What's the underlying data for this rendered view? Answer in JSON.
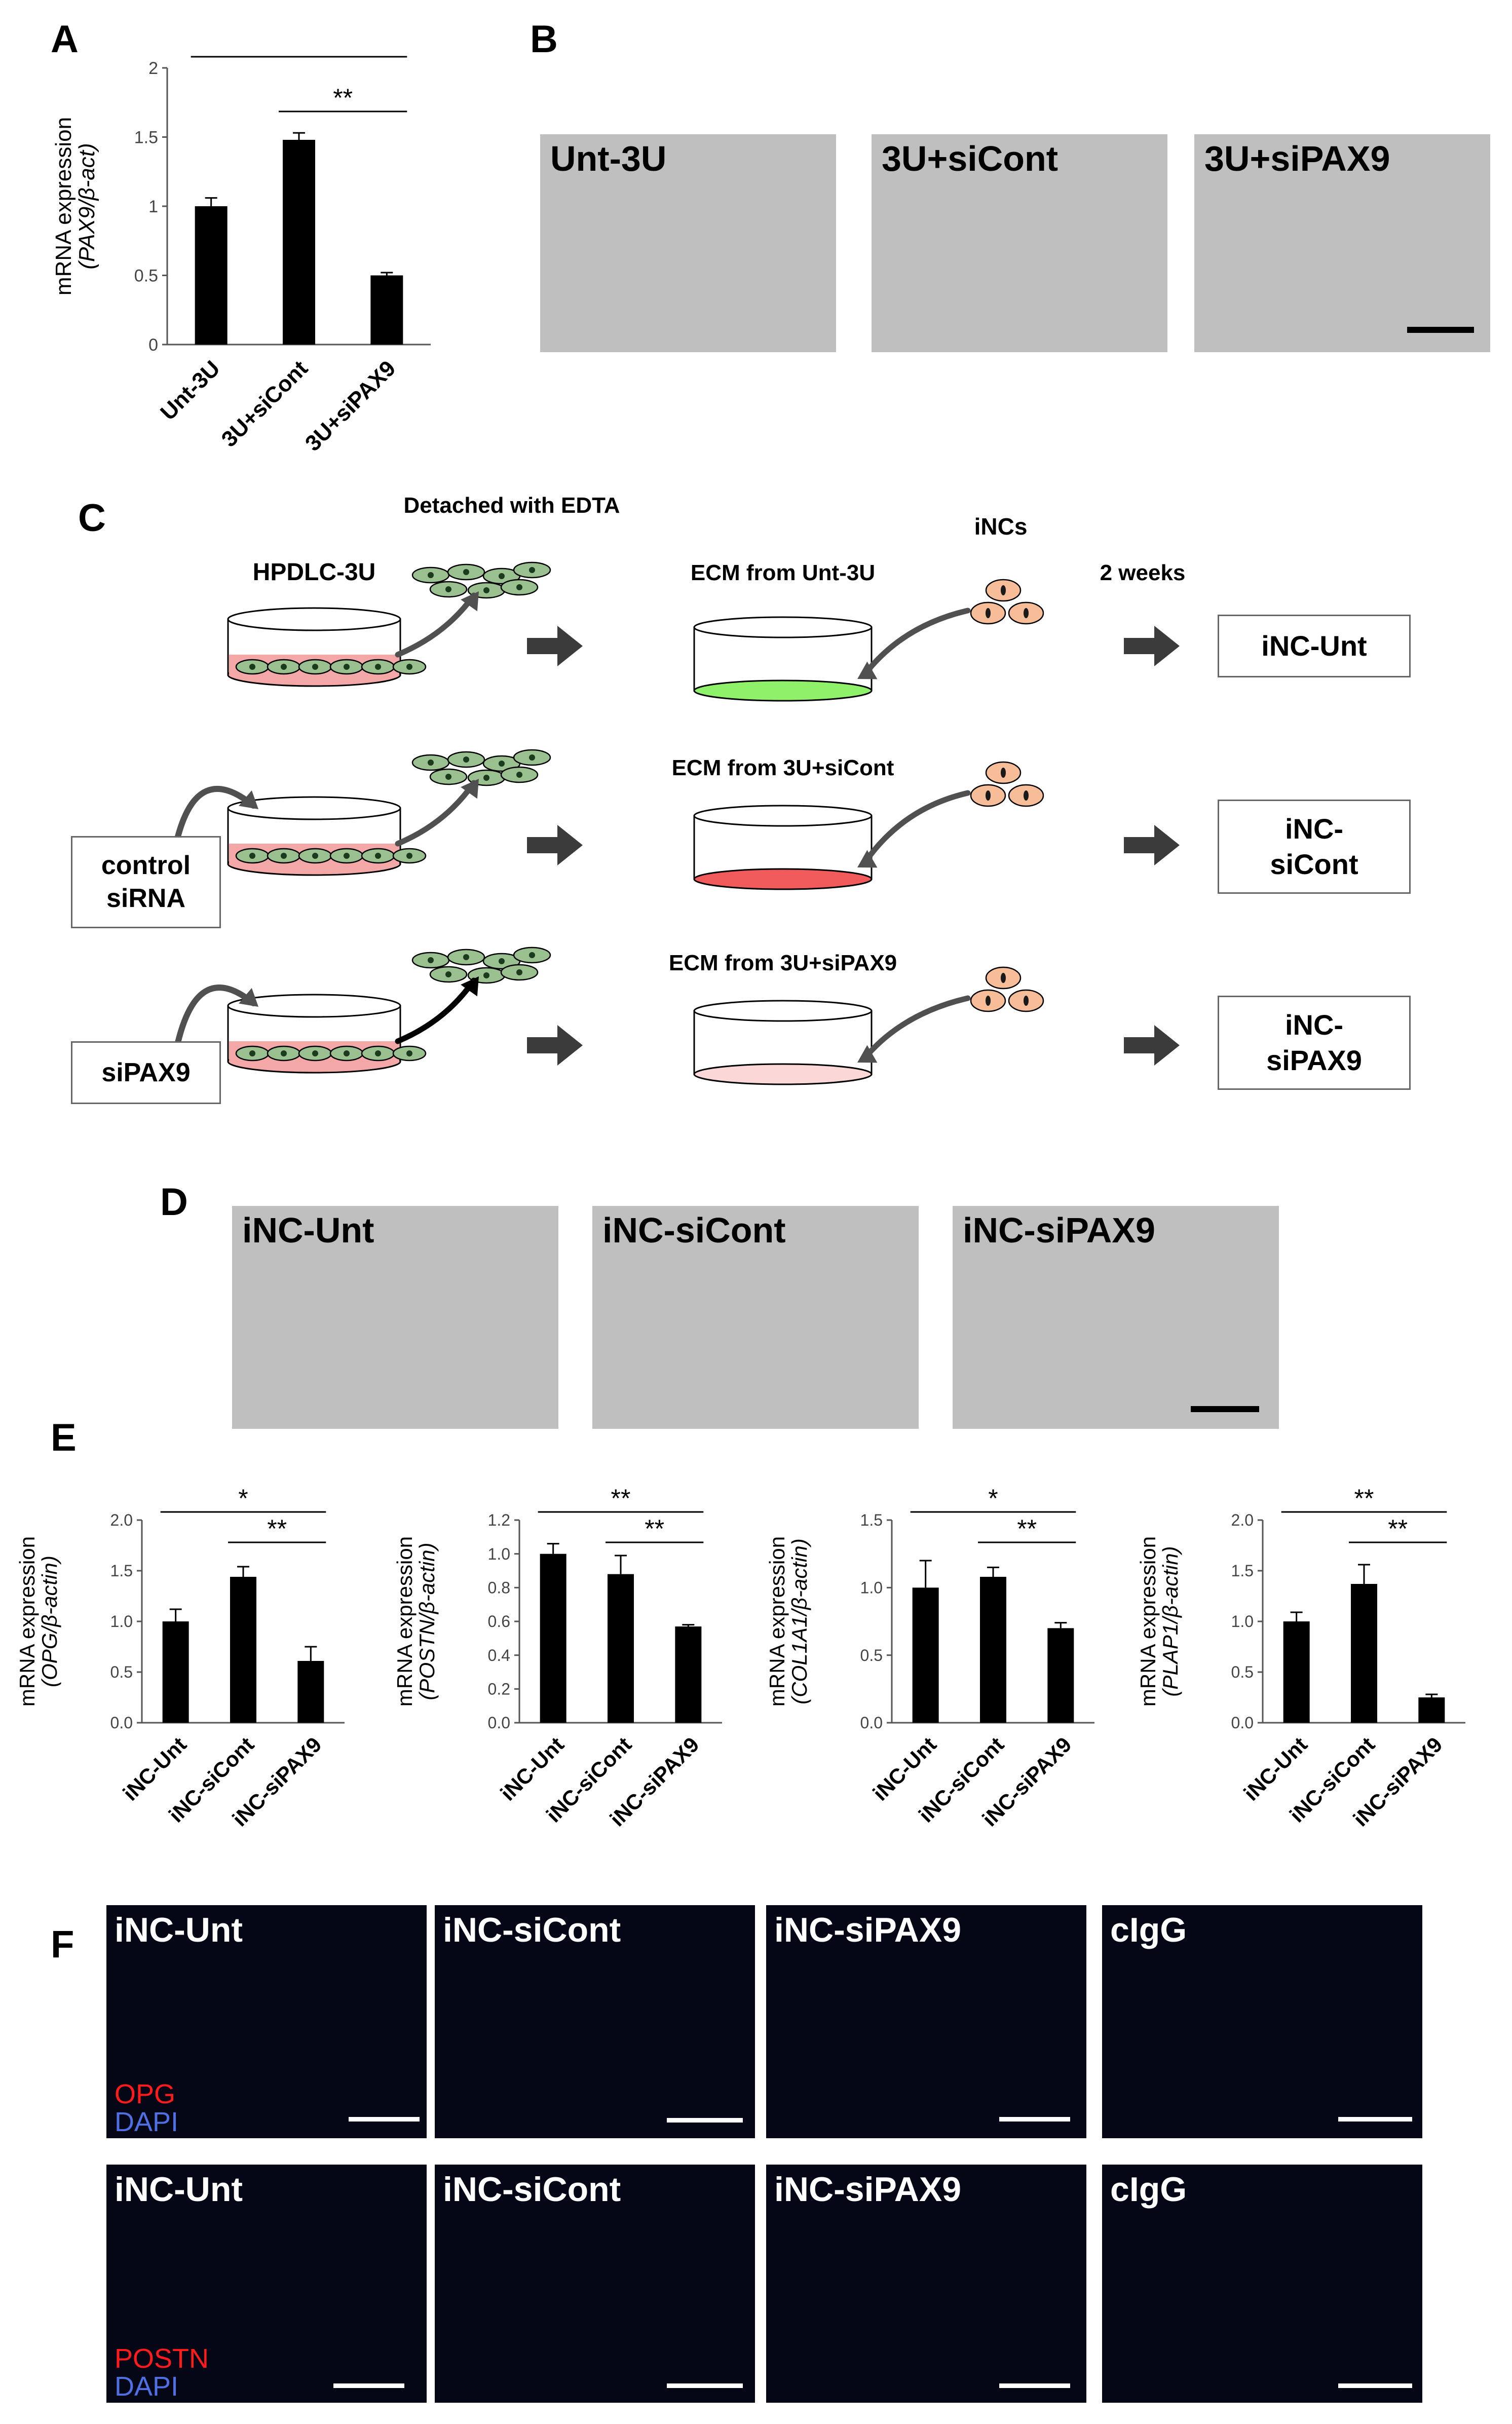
{
  "panels": {
    "A": "A",
    "B": "B",
    "C": "C",
    "D": "D",
    "E": "E",
    "F": "F"
  },
  "chart_data": [
    {
      "id": "A",
      "type": "bar",
      "categories": [
        "Unt-3U",
        "3U+siCont",
        "3U+siPAX9"
      ],
      "values": [
        1.0,
        1.48,
        0.5
      ],
      "errors": [
        0.06,
        0.05,
        0.02
      ],
      "ylabel_line1": "mRNA expression",
      "ylabel_line2": "(PAX9/β-act)",
      "ylim": [
        0,
        2
      ],
      "yticks": [
        "0",
        "0.5",
        "1",
        "1.5",
        "2"
      ],
      "significance": [
        {
          "from": 0,
          "to": 2,
          "label": "**"
        },
        {
          "from": 1,
          "to": 2,
          "label": "**"
        }
      ]
    },
    {
      "id": "E1",
      "type": "bar",
      "categories": [
        "iNC-Unt",
        "iNC-siCont",
        "iNC-siPAX9"
      ],
      "values": [
        1.0,
        1.44,
        0.61
      ],
      "errors": [
        0.12,
        0.1,
        0.14
      ],
      "ylabel_line1": "mRNA expression",
      "ylabel_line2": "(OPG/β-actin)",
      "ylim": [
        0,
        2.0
      ],
      "yticks": [
        "0.0",
        "0.5",
        "1.0",
        "1.5",
        "2.0"
      ],
      "significance": [
        {
          "from": 0,
          "to": 2,
          "label": "*"
        },
        {
          "from": 1,
          "to": 2,
          "label": "**"
        }
      ]
    },
    {
      "id": "E2",
      "type": "bar",
      "categories": [
        "iNC-Unt",
        "iNC-siCont",
        "iNC-siPAX9"
      ],
      "values": [
        1.0,
        0.88,
        0.57
      ],
      "errors": [
        0.06,
        0.11,
        0.01
      ],
      "ylabel_line1": "mRNA expression",
      "ylabel_line2": "(POSTN/β-actin)",
      "ylim": [
        0,
        1.2
      ],
      "yticks": [
        "0.0",
        "0.2",
        "0.4",
        "0.6",
        "0.8",
        "1.0",
        "1.2"
      ],
      "significance": [
        {
          "from": 0,
          "to": 2,
          "label": "**"
        },
        {
          "from": 1,
          "to": 2,
          "label": "**"
        }
      ]
    },
    {
      "id": "E3",
      "type": "bar",
      "categories": [
        "iNC-Unt",
        "iNC-siCont",
        "iNC-siPAX9"
      ],
      "values": [
        1.0,
        1.08,
        0.7
      ],
      "errors": [
        0.2,
        0.07,
        0.04
      ],
      "ylabel_line1": "mRNA expression",
      "ylabel_line2": "(COL1A1/β-actin)",
      "ylim": [
        0,
        1.5
      ],
      "yticks": [
        "0.0",
        "0.5",
        "1.0",
        "1.5"
      ],
      "significance": [
        {
          "from": 0,
          "to": 2,
          "label": "*"
        },
        {
          "from": 1,
          "to": 2,
          "label": "**"
        }
      ]
    },
    {
      "id": "E4",
      "type": "bar",
      "categories": [
        "iNC-Unt",
        "iNC-siCont",
        "iNC-siPAX9"
      ],
      "values": [
        1.0,
        1.37,
        0.25
      ],
      "errors": [
        0.09,
        0.19,
        0.03
      ],
      "ylabel_line1": "mRNA expression",
      "ylabel_line2": "(PLAP1/β-actin)",
      "ylim": [
        0,
        2.0
      ],
      "yticks": [
        "0.0",
        "0.5",
        "1.0",
        "1.5",
        "2.0"
      ],
      "significance": [
        {
          "from": 0,
          "to": 2,
          "label": "**"
        },
        {
          "from": 1,
          "to": 2,
          "label": "**"
        }
      ]
    }
  ],
  "panel_b": {
    "images": [
      "Unt-3U",
      "3U+siCont",
      "3U+siPAX9"
    ]
  },
  "panel_c": {
    "detached_label": "Detached with EDTA",
    "hpdlc_label": "HPDLC-3U",
    "incs_label": "iNCs",
    "weeks_label": "2 weeks",
    "control_sirna": "control\nsiRNA",
    "sipax9": "siPAX9",
    "rows": [
      {
        "ecm_label": "ECM from Unt-3U",
        "result": "iNC-Unt",
        "ecm_color": "#8ff06a"
      },
      {
        "ecm_label": "ECM from 3U+siCont",
        "result": "iNC-\nsiCont",
        "ecm_color": "#f05a5a"
      },
      {
        "ecm_label": "ECM from 3U+siPAX9",
        "result": "iNC-\nsiPAX9",
        "ecm_color": "#fbd7d7"
      }
    ],
    "dish_fill": "#f4a7a7",
    "cell_green": "#9bc08f",
    "inc_color": "#f7bd98"
  },
  "panel_d": {
    "images": [
      "iNC-Unt",
      "iNC-siCont",
      "iNC-siPAX9"
    ]
  },
  "panel_f": {
    "row1": [
      "iNC-Unt",
      "iNC-siCont",
      "iNC-siPAX9",
      "cIgG"
    ],
    "row1_stain": [
      "OPG",
      "DAPI"
    ],
    "row2": [
      "iNC-Unt",
      "iNC-siCont",
      "iNC-siPAX9",
      "cIgG"
    ],
    "row2_stain": [
      "POSTN",
      "DAPI"
    ]
  }
}
